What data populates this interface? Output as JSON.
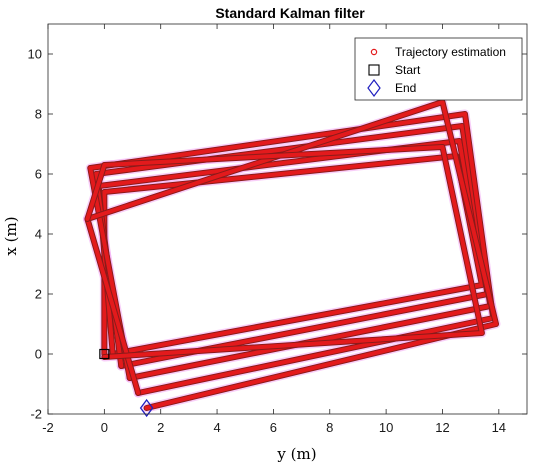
{
  "chart_data": {
    "type": "scatter",
    "title": "Standard Kalman filter",
    "xlabel": "y (m)",
    "ylabel": "x (m)",
    "xlim": [
      -2,
      15
    ],
    "ylim": [
      -2,
      11
    ],
    "xticks": [
      -2,
      0,
      2,
      4,
      6,
      8,
      10,
      12,
      14
    ],
    "yticks": [
      -2,
      0,
      2,
      4,
      6,
      8,
      10
    ],
    "grid": false,
    "legend_position": "top-right",
    "legend": [
      "Trajectory estimation",
      "Start",
      "End"
    ],
    "colors": {
      "trajectory": "#e31a1c",
      "trajectory_edge": "#8b1a1a",
      "halo": "#f2a6f2",
      "start": "#000000",
      "end": "#1f1fbf"
    },
    "series": [
      {
        "name": "Trajectory estimation",
        "marker": "circle",
        "loops": [
          [
            [
              0,
              0
            ],
            [
              0,
              5.4
            ],
            [
              12.5,
              6.6
            ],
            [
              13.4,
              2.3
            ],
            [
              0.3,
              0
            ]
          ],
          [
            [
              0.3,
              0
            ],
            [
              -0.2,
              5.6
            ],
            [
              12.6,
              7.1
            ],
            [
              13.6,
              2.0
            ],
            [
              0.6,
              -0.4
            ]
          ],
          [
            [
              0.6,
              -0.4
            ],
            [
              -0.3,
              6.0
            ],
            [
              12.7,
              7.6
            ],
            [
              13.7,
              1.6
            ],
            [
              0.9,
              -0.8
            ]
          ],
          [
            [
              0.9,
              -0.8
            ],
            [
              -0.5,
              6.2
            ],
            [
              12.8,
              8.0
            ],
            [
              13.8,
              1.2
            ],
            [
              1.2,
              -1.3
            ]
          ],
          [
            [
              1.2,
              -1.3
            ],
            [
              -0.6,
              4.5
            ],
            [
              12.0,
              8.4
            ],
            [
              13.9,
              1.0
            ],
            [
              1.5,
              -1.8
            ]
          ],
          [
            [
              -0.6,
              4.5
            ],
            [
              0,
              6.3
            ],
            [
              12.0,
              6.9
            ],
            [
              13.4,
              0.7
            ],
            [
              0,
              -0.1
            ]
          ]
        ]
      }
    ],
    "start": {
      "label": "Start",
      "x": 0,
      "y": 0
    },
    "end": {
      "label": "End",
      "x": 1.5,
      "y": -1.8
    }
  }
}
